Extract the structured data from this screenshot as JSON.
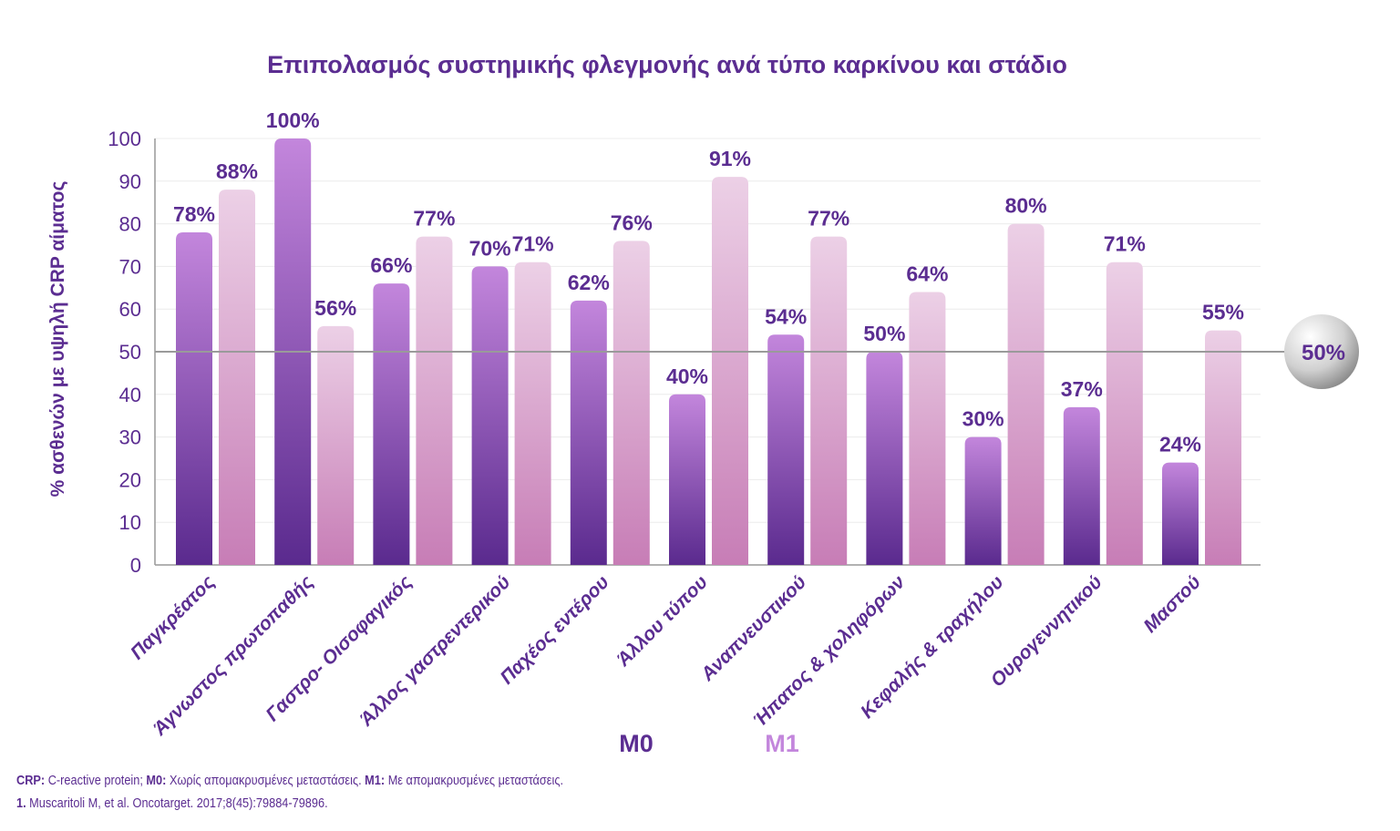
{
  "chart_data": {
    "type": "bar",
    "title": "Επιπολασμός συστημικής φλεγμονής ανά τύπο καρκίνου και στάδιο",
    "ylabel": "% ασθενών με υψηλή CRP αίματος",
    "xlabel": "",
    "ylim": [
      0,
      100
    ],
    "yticks": [
      "0",
      "10",
      "20",
      "30",
      "40",
      "50",
      "60",
      "70",
      "80",
      "90",
      "100"
    ],
    "grid": true,
    "categories": [
      "Παγκρέατος",
      "Άγνωστος πρωτοπαθής",
      "Γαστρο- Οισοφαγικός",
      "Άλλος γαστρεντερικού",
      "Παχέος εντέρου",
      "Άλλου τύπου",
      "Αναπνευστικού",
      "Ήπατος & χοληφόρων",
      "Κεφαλής & τραχήλου",
      "Ουρογεννητικού",
      "Μαστού"
    ],
    "series": [
      {
        "name": "M0",
        "values": [
          78,
          100,
          66,
          70,
          62,
          40,
          54,
          50,
          30,
          37,
          24
        ],
        "labels": [
          "78%",
          "100%",
          "66%",
          "70%",
          "62%",
          "40%",
          "54%",
          "50%",
          "30%",
          "37%",
          "24%"
        ],
        "color_top": "#c386dc",
        "color_bottom": "#5a2a8e"
      },
      {
        "name": "M1",
        "values": [
          88,
          56,
          77,
          71,
          76,
          91,
          77,
          64,
          80,
          71,
          55
        ],
        "labels": [
          "88%",
          "56%",
          "77%",
          "71%",
          "76%",
          "91%",
          "77%",
          "64%",
          "80%",
          "71%",
          "55%"
        ],
        "color_top": "#ecd0e6",
        "color_bottom": "#c77db6"
      }
    ],
    "reference_line": {
      "value": 50,
      "label": "50%"
    },
    "legend": [
      "M0",
      "M1"
    ],
    "legend_placement": "bottom"
  },
  "footnote": {
    "crp_key": "CRP:",
    "crp_text": " C-reactive protein; ",
    "m0_key": "M0:",
    "m0_text": " Χωρίς απομακρυσμένες μεταστάσεις. ",
    "m1_key": "M1:",
    "m1_text": " Με απομακρυσμένες μεταστάσεις.",
    "ref_num": "1.",
    "ref_text": " Muscaritoli M, et al. Oncotarget. 2017;8(45):79884-79896."
  },
  "colors": {
    "text": "#5b2d91",
    "axis": "#999999"
  }
}
